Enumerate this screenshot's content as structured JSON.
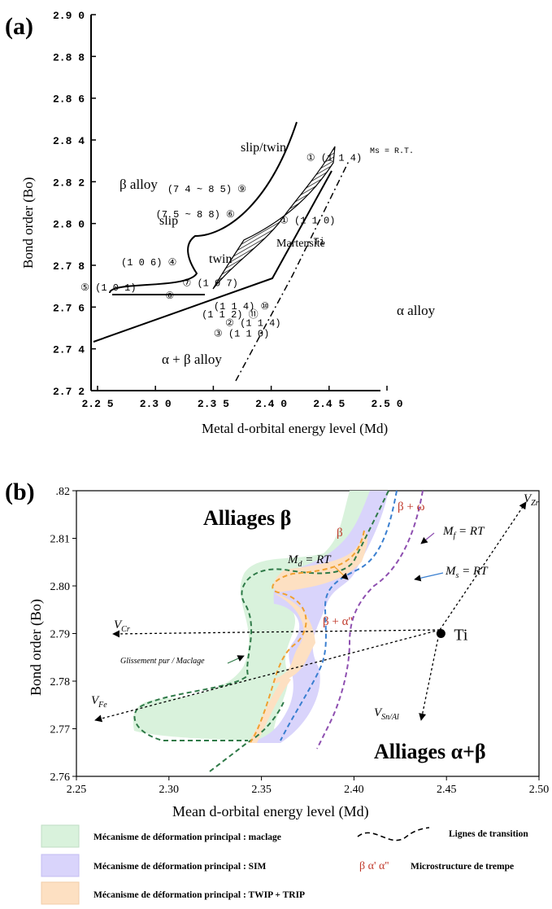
{
  "chart_data": [
    {
      "type": "scatter",
      "panel_label": "(a)",
      "xlabel": "Metal d-orbital energy level (Md)",
      "ylabel": "Bond order (Bo)",
      "xlim": [
        2.25,
        2.5
      ],
      "ylim": [
        2.72,
        2.9
      ],
      "x_ticks": [
        "2.2 5",
        "2.3 0",
        "2.3 5",
        "2.4 0",
        "2.4 5",
        "2.5 0"
      ],
      "y_ticks": [
        "2.9 0",
        "2.8 8",
        "2.8 6",
        "2.8 4",
        "2.8 2",
        "2.8 0",
        "2.7 8",
        "2.7 6",
        "2.7 4",
        "2.7 2"
      ],
      "regions": {
        "beta": "β alloy",
        "alpha": "α alloy",
        "alpha_beta": "α + β alloy",
        "slip": "slip",
        "twin": "twin",
        "slip_twin": "slip/twin",
        "martensite": "Martensite",
        "ms": "Ms = R.T."
      },
      "points": [
        {
          "label": "Ti",
          "x": 2.447,
          "y": 2.79
        },
        {
          "label": "(7 4 ~ 8 5) ⑨",
          "x": 2.35,
          "y": 2.815
        },
        {
          "label": "(7 5 ~ 8 8) ⑥",
          "x": 2.34,
          "y": 2.803
        },
        {
          "label": "(1 0 6) ④",
          "x": 2.3,
          "y": 2.78
        },
        {
          "label": "⑤ (1 0 1)",
          "x": 2.265,
          "y": 2.768
        },
        {
          "label": "⑧",
          "x": 2.318,
          "y": 2.764
        },
        {
          "label": "⑦ (1 0 7)",
          "x": 2.353,
          "y": 2.77
        },
        {
          "label": "(1 1 4) ⑩",
          "x": 2.38,
          "y": 2.759
        },
        {
          "label": "(1 1 2) ⑪",
          "x": 2.37,
          "y": 2.755
        },
        {
          "label": "② (1 1 4)",
          "x": 2.39,
          "y": 2.751
        },
        {
          "label": "③ (1 1 0)",
          "x": 2.38,
          "y": 2.746
        },
        {
          "label": "① (1 1 0)",
          "x": 2.437,
          "y": 2.8
        },
        {
          "label": "① (1 1 4)",
          "x": 2.46,
          "y": 2.83
        }
      ]
    },
    {
      "type": "scatter",
      "panel_label": "(b)",
      "xlabel": "Mean d-orbital energy level (Md)",
      "ylabel": "Bond order (Bo)",
      "xlim": [
        2.25,
        2.5
      ],
      "ylim": [
        2.76,
        2.82
      ],
      "x_ticks": [
        "2.25",
        "2.30",
        "2.35",
        "2.40",
        "2.45",
        "2.50"
      ],
      "y_ticks": [
        ".82",
        "2.81",
        "2.80",
        "2.79",
        "2.78",
        "2.77",
        "2.76"
      ],
      "points": [
        {
          "label": "Ti",
          "x": 2.447,
          "y": 2.79
        }
      ],
      "vectors": [
        {
          "label": "V_Zr",
          "from": [
            2.447,
            2.79
          ],
          "to": [
            2.492,
            2.815
          ]
        },
        {
          "label": "V_Cr",
          "from": [
            2.447,
            2.79
          ],
          "to": [
            2.268,
            2.789
          ]
        },
        {
          "label": "V_Fe",
          "from": [
            2.447,
            2.79
          ],
          "to": [
            2.258,
            2.77
          ]
        },
        {
          "label": "V_Sn/Al",
          "from": [
            2.447,
            2.79
          ],
          "to": [
            2.426,
            2.77
          ]
        }
      ],
      "annotations": {
        "alliages_beta": "Alliages β",
        "alliages_ab": "Alliages α+β",
        "beta": "β",
        "beta_omega": "β + ω",
        "beta_alpha2": "β + α''",
        "mf": "M_f = RT",
        "md": "M_d = RT",
        "ms": "M_s = RT",
        "glissement": "Glissement pur / Maclage"
      },
      "legend": [
        {
          "label": "Mécanisme de déformation principal : maclage",
          "color": "#d9f2dc"
        },
        {
          "label": "Mécanisme de déformation principal : SIM",
          "color": "#d9d4fb"
        },
        {
          "label": "Mécanisme de déformation principal : TWIP + TRIP",
          "color": "#fde0c2"
        },
        {
          "label": "Lignes de transition",
          "color": "#000000"
        },
        {
          "label": "Microstructure de trempe",
          "color": "#000000"
        }
      ],
      "legend_symbol": "β α' α''"
    }
  ]
}
